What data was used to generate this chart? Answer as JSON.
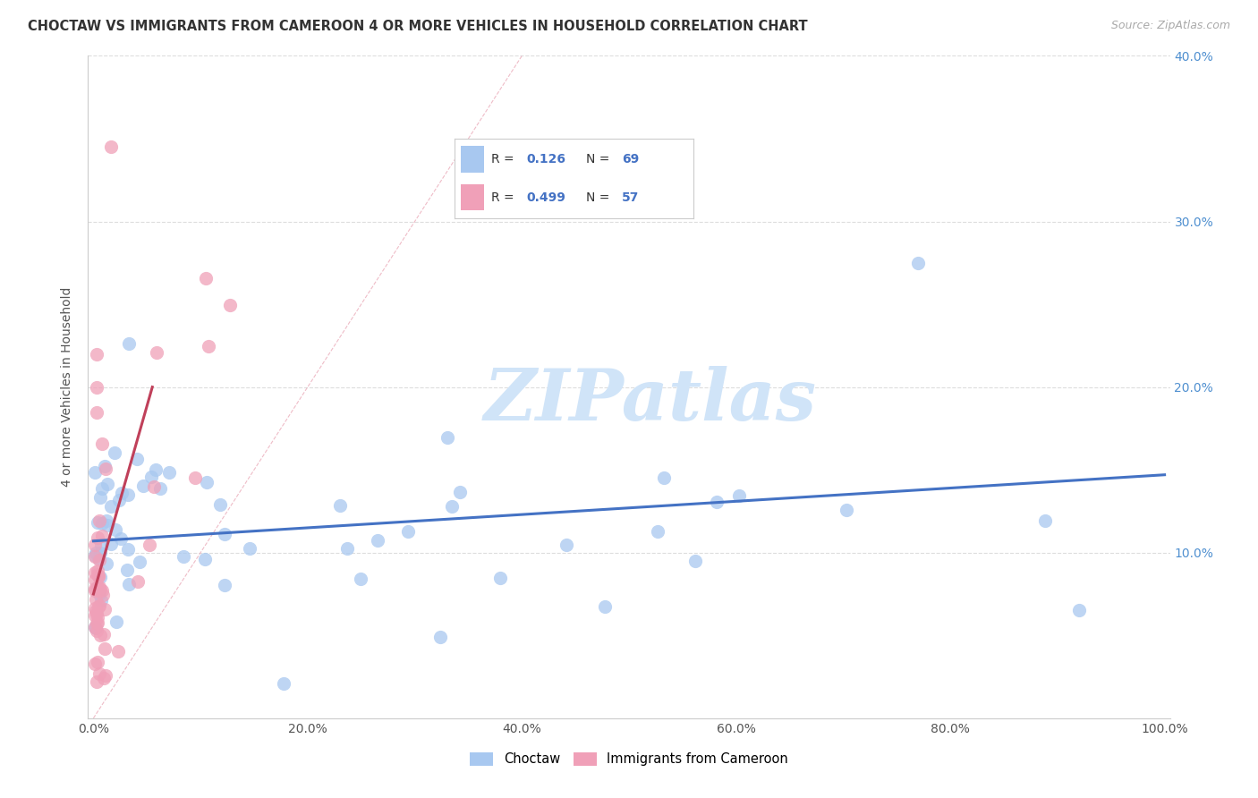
{
  "title": "CHOCTAW VS IMMIGRANTS FROM CAMEROON 4 OR MORE VEHICLES IN HOUSEHOLD CORRELATION CHART",
  "source": "Source: ZipAtlas.com",
  "ylabel": "4 or more Vehicles in Household",
  "xlim": [
    0,
    1.0
  ],
  "ylim": [
    0,
    0.4
  ],
  "xtick_labels": [
    "0.0%",
    "",
    "",
    "",
    "",
    "20.0%",
    "",
    "",
    "",
    "",
    "40.0%",
    "",
    "",
    "",
    "",
    "60.0%",
    "",
    "",
    "",
    "",
    "80.0%",
    "",
    "",
    "",
    "",
    "100.0%"
  ],
  "ytick_labels_right": [
    "",
    "10.0%",
    "20.0%",
    "30.0%",
    "40.0%"
  ],
  "color_blue": "#a8c8f0",
  "color_pink": "#f0a0b8",
  "color_blue_dark": "#a8c8f0",
  "color_pink_dark": "#f0a0b8",
  "color_blue_line": "#4472c4",
  "color_pink_line": "#c0405a",
  "watermark": "ZIPatlas",
  "watermark_color": "#d0e4f8",
  "bg_color": "#ffffff",
  "grid_color": "#dddddd",
  "legend_items": [
    {
      "color": "#a8c8f0",
      "r": "R = ",
      "r_val": " 0.126",
      "n": "N = ",
      "n_val": "69"
    },
    {
      "color": "#f0a0b8",
      "r": "R = ",
      "r_val": " 0.499",
      "n": "N = ",
      "n_val": "57"
    }
  ]
}
